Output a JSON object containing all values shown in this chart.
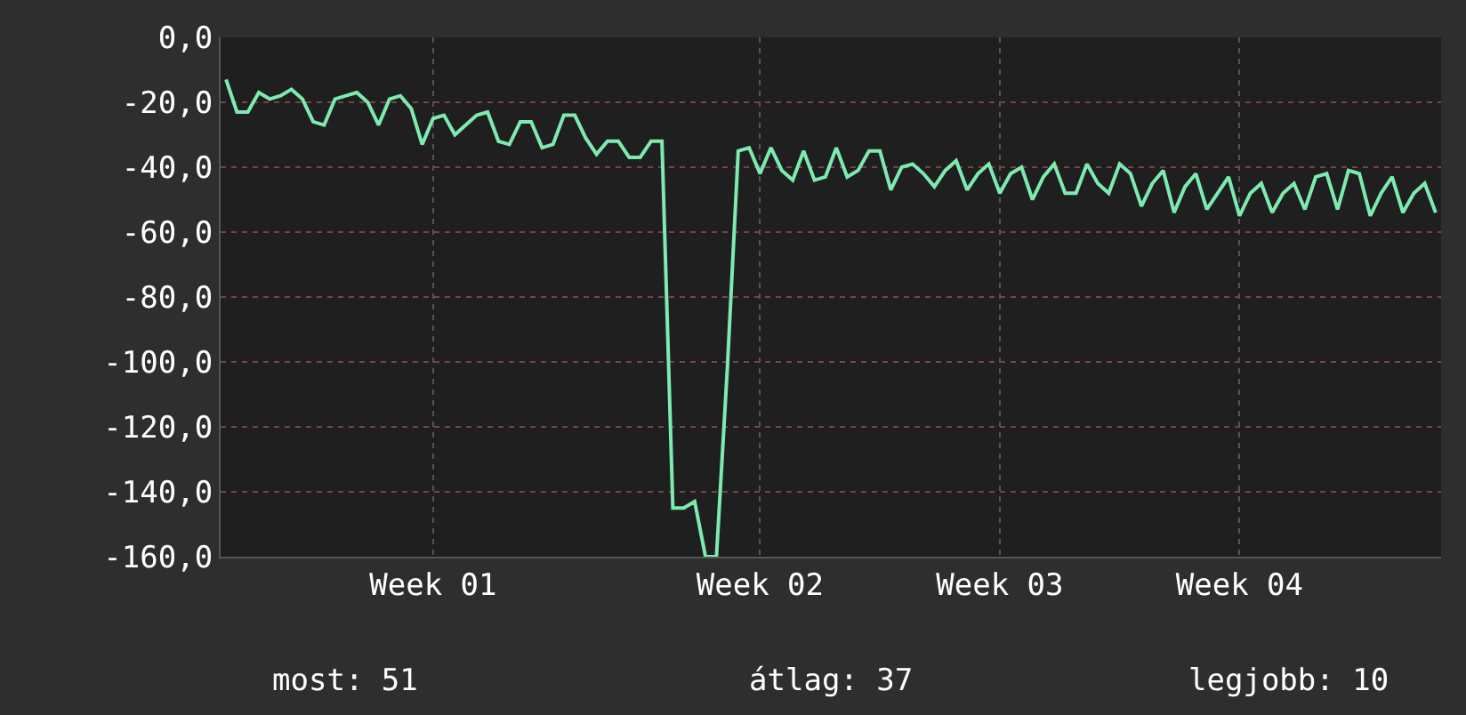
{
  "chart_data": {
    "type": "line",
    "categories": [
      null,
      null,
      null,
      null,
      null,
      null,
      null,
      null,
      null,
      null,
      null,
      null,
      null,
      null,
      null,
      null,
      null,
      null,
      null,
      "Week 01",
      null,
      null,
      null,
      null,
      null,
      null,
      null,
      null,
      null,
      null,
      null,
      null,
      null,
      null,
      null,
      null,
      null,
      null,
      null,
      null,
      null,
      null,
      null,
      null,
      null,
      null,
      null,
      null,
      null,
      "Week 02",
      null,
      null,
      null,
      null,
      null,
      null,
      null,
      null,
      null,
      null,
      null,
      null,
      null,
      null,
      null,
      null,
      null,
      null,
      null,
      null,
      null,
      "Week 03",
      null,
      null,
      null,
      null,
      null,
      null,
      null,
      null,
      null,
      null,
      null,
      null,
      null,
      null,
      null,
      null,
      null,
      null,
      null,
      null,
      null,
      "Week 04",
      null,
      null,
      null,
      null,
      null,
      null,
      null,
      null,
      null,
      null,
      null,
      null,
      null,
      null,
      null,
      null,
      null,
      null
    ],
    "series": [
      {
        "color": "#7deab0",
        "values": [
          -13,
          -23,
          -23,
          -17,
          -19,
          -18,
          -16,
          -19,
          -26,
          -27,
          -19,
          -18,
          -17,
          -20,
          -27,
          -19,
          -18,
          -22,
          -33,
          -25,
          -24,
          -30,
          -27,
          -24,
          -23,
          -32,
          -33,
          -26,
          -26,
          -34,
          -33,
          -24,
          -24,
          -31,
          -36,
          -32,
          -32,
          -37,
          -37,
          -32,
          -32,
          -145,
          -145,
          -143,
          -160,
          -160,
          -102,
          -35,
          -34,
          -42,
          -34,
          -41,
          -44,
          -35,
          -44,
          -43,
          -34,
          -43,
          -41,
          -35,
          -35,
          -47,
          -40,
          -39,
          -42,
          -46,
          -41,
          -38,
          -47,
          -42,
          -39,
          -48,
          -42,
          -40,
          -50,
          -43,
          -39,
          -48,
          -48,
          -39,
          -45,
          -48,
          -39,
          -42,
          -52,
          -45,
          -41,
          -54,
          -46,
          -42,
          -53,
          -48,
          -43,
          -55,
          -48,
          -45,
          -54,
          -48,
          -45,
          -53,
          -43,
          -42,
          -53,
          -41,
          -42,
          -55,
          -48,
          -43,
          -54,
          -48,
          -45,
          -54
        ]
      }
    ],
    "ylim": [
      -160,
      0
    ],
    "yticks": [
      {
        "value": 0,
        "label": "0,0"
      },
      {
        "value": -20,
        "label": "-20,0"
      },
      {
        "value": -40,
        "label": "-40,0"
      },
      {
        "value": -60,
        "label": "-60,0"
      },
      {
        "value": -80,
        "label": "-80,0"
      },
      {
        "value": -100,
        "label": "-100,0"
      },
      {
        "value": -120,
        "label": "-120,0"
      },
      {
        "value": -140,
        "label": "-140,0"
      },
      {
        "value": -160,
        "label": "-160,0"
      }
    ],
    "grid": true,
    "annotations": [
      "most: 51",
      "átlag: 37",
      "legjobb: 10"
    ]
  }
}
